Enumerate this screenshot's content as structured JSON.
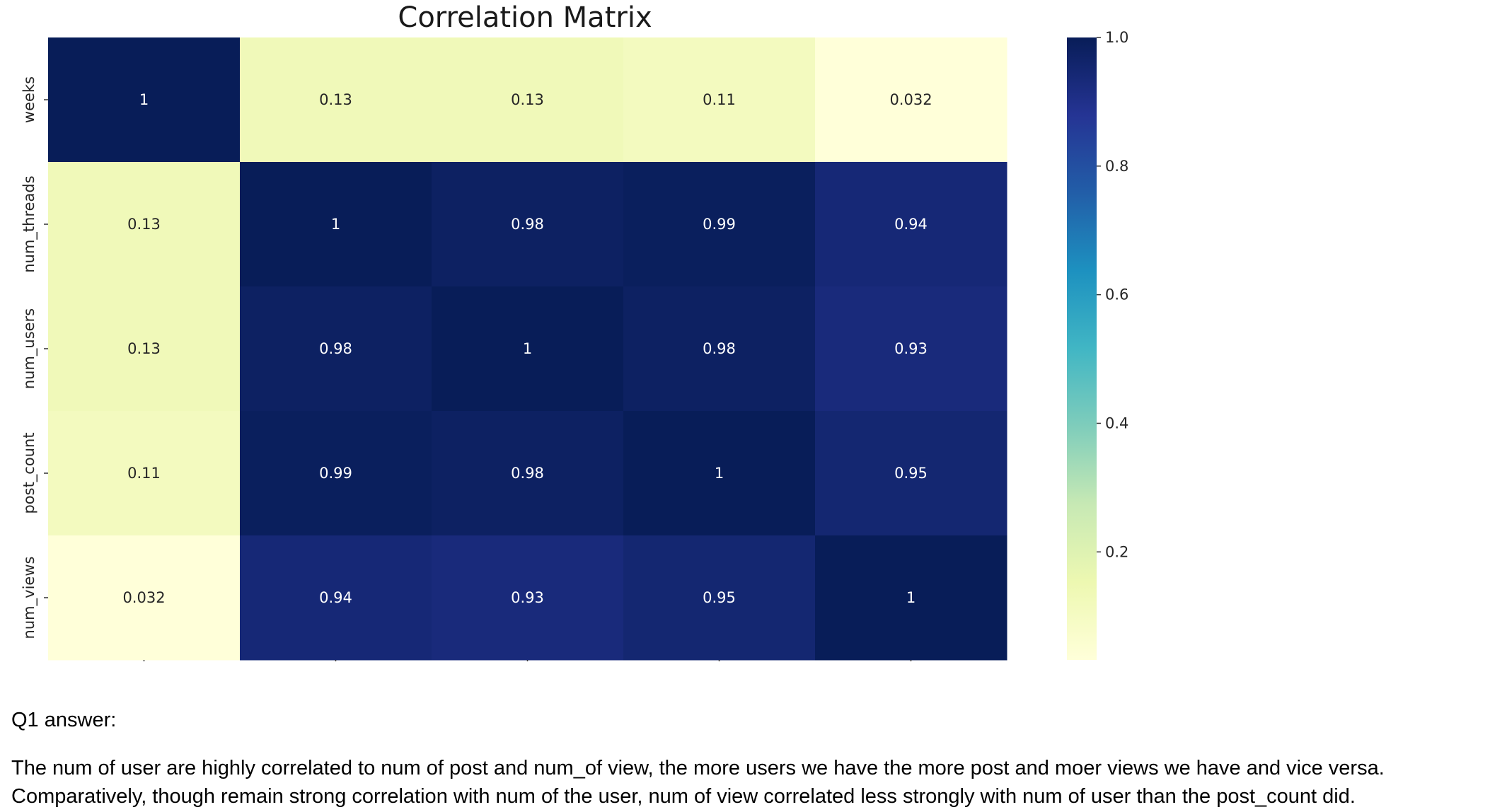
{
  "chart_data": {
    "type": "heatmap",
    "title": "Correlation Matrix",
    "x_labels": [
      "weeks",
      "num_threads",
      "num_users",
      "post_count",
      "num_views"
    ],
    "y_labels": [
      "weeks",
      "num_threads",
      "num_users",
      "post_count",
      "num_views"
    ],
    "values": [
      [
        1,
        0.13,
        0.13,
        0.11,
        0.032
      ],
      [
        0.13,
        1,
        0.98,
        0.99,
        0.94
      ],
      [
        0.13,
        0.98,
        1,
        0.98,
        0.93
      ],
      [
        0.11,
        0.99,
        0.98,
        1,
        0.95
      ],
      [
        0.032,
        0.94,
        0.93,
        0.95,
        1
      ]
    ],
    "value_labels": [
      [
        "1",
        "0.13",
        "0.13",
        "0.11",
        "0.032"
      ],
      [
        "0.13",
        "1",
        "0.98",
        "0.99",
        "0.94"
      ],
      [
        "0.13",
        "0.98",
        "1",
        "0.98",
        "0.93"
      ],
      [
        "0.11",
        "0.99",
        "0.98",
        "1",
        "0.95"
      ],
      [
        "0.032",
        "0.94",
        "0.93",
        "0.95",
        "1"
      ]
    ],
    "colormap": "YlGnBu",
    "colorbar": {
      "range": [
        0.032,
        1.0
      ],
      "ticks": [
        0.2,
        0.4,
        0.6,
        0.8,
        1.0
      ],
      "tick_labels": [
        "0.2",
        "0.4",
        "0.6",
        "0.8",
        "1.0"
      ]
    }
  },
  "text": {
    "question_label": "Q1 answer:",
    "answer_lines": [
      "The num of user are highly correlated to num of post and num_of view, the more users we have the more post and moer views we have and vice versa.",
      "Comparatively, though remain strong correlation with num of the user, num of view correlated less strongly with num of user than the post_count did."
    ]
  }
}
